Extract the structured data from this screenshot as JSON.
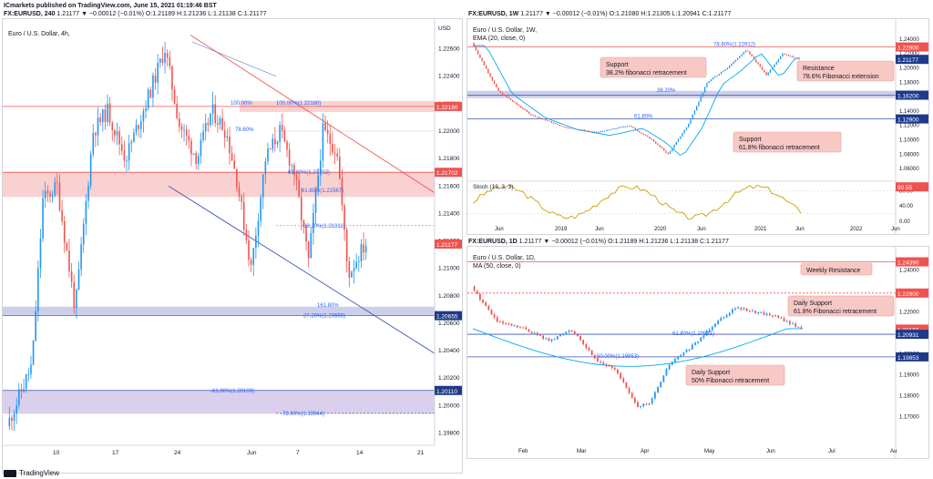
{
  "header": {
    "publisher": "ICmarkets published on TradingView.com, June 15, 2021 01:19:46 BST"
  },
  "left": {
    "symbol": "FX:EURUSD, 240",
    "ohlc": "1.21177 ▼ −0.00012 (−0.01%) O:1.21189 H:1.21236 L:1.21138 C:1.21177",
    "label": "Euro / U.S. Dollar, 4h,",
    "currency": "USD",
    "price_ticks": [
      "1.22600",
      "1.22400",
      "1.22200",
      "1.22000",
      "1.21800",
      "1.21600",
      "1.21400",
      "1.21200",
      "1.21000",
      "1.20800",
      "1.20600",
      "1.20400",
      "1.20200",
      "1.20000",
      "1.19800"
    ],
    "date_ticks": [
      "10",
      "17",
      "24",
      "Jun",
      "7",
      "14",
      "21"
    ],
    "fib_labels": [
      "100.00%",
      "100.00%(1.22180)",
      "78.60%",
      "61.80%(1.21702)",
      "61.80%(1.21567)",
      "38.20%(1.21311)",
      "161.80%",
      "-27.20%(1.20655)",
      "-61.80%(1.20109)",
      "-78.60%(1.19944)"
    ],
    "price_tags": {
      "r1": "1.22180",
      "r2": "1.21702",
      "last": "1.21177",
      "s1": "1.20655",
      "s2": "1.20110"
    },
    "colors": {
      "up": "#2196f3",
      "down": "#ef5350",
      "trend_up": "#ef5350",
      "trend_down": "#3f51b5"
    }
  },
  "rw": {
    "symbol": "FX:EURUSD, 1W",
    "ohlc": "1.21177 ▼ −0.00012 (−0.01%) O:1.21080 H:1.21305 L:1.20941 C:1.21177",
    "label": "Euro / U.S. Dollar, 1W,",
    "ema": "EMA (20, close, 0)",
    "price_ticks": [
      "1.24000",
      "1.22000",
      "1.20000",
      "1.18000",
      "1.16000",
      "1.14000",
      "1.12000",
      "1.10000",
      "1.08000",
      "1.06000"
    ],
    "date_ticks": [
      "Jun",
      "2019",
      "Jun",
      "2020",
      "Jun",
      "2021",
      "Jun",
      "2022",
      "Jun"
    ],
    "fib_labels": [
      "78.60%(1.22912)",
      "38.20%",
      "61.80%"
    ],
    "price_tags": {
      "r": "1.22900",
      "last": "1.21177",
      "s1": "1.16200",
      "s2": "1.12900"
    },
    "callouts": {
      "support1": [
        "Support",
        "38.2% fibonacci retracement"
      ],
      "resistance": [
        "Resistance",
        "78.6% Fibonacci extension"
      ],
      "support2": [
        "Support",
        "61.8% fibonacci retracement"
      ]
    },
    "stoch": {
      "label": "Stoch (13, 3, 3)",
      "ticks": [
        "80.00",
        "40.00",
        "0.00"
      ],
      "tag": "90.55"
    }
  },
  "rd": {
    "symbol": "FX:EURUSD, 1D",
    "ohlc": "1.21177 ▼ −0.00012 (−0.01%) O:1.21189 H:1.21236 L:1.21138 C:1.21177",
    "label": "Euro / U.S. Dollar, 1D,",
    "ma": "MA (50, close, 0)",
    "price_ticks": [
      "1.24000",
      "1.22000",
      "1.21000",
      "1.20000",
      "1.19000",
      "1.18000",
      "1.17000"
    ],
    "date_ticks": [
      "Feb",
      "Mar",
      "Apr",
      "May",
      "Jun",
      "Jul",
      "Au"
    ],
    "fib_labels": [
      "61.80%(1.20931)",
      "50.00%(1.19853)"
    ],
    "price_tags": {
      "top": "1.24390",
      "r": "1.22900",
      "last": "1.21177",
      "s1": "1.20931",
      "s2": "1.19853"
    },
    "callouts": {
      "weekly": [
        "Weekly Resistance"
      ],
      "daily1": [
        "Daily Support",
        "61.8% Fibonacci retracement"
      ],
      "daily2": [
        "Daily Support",
        "50% Fibonacci retracement"
      ]
    }
  },
  "footer": {
    "brand": "TradingView"
  }
}
